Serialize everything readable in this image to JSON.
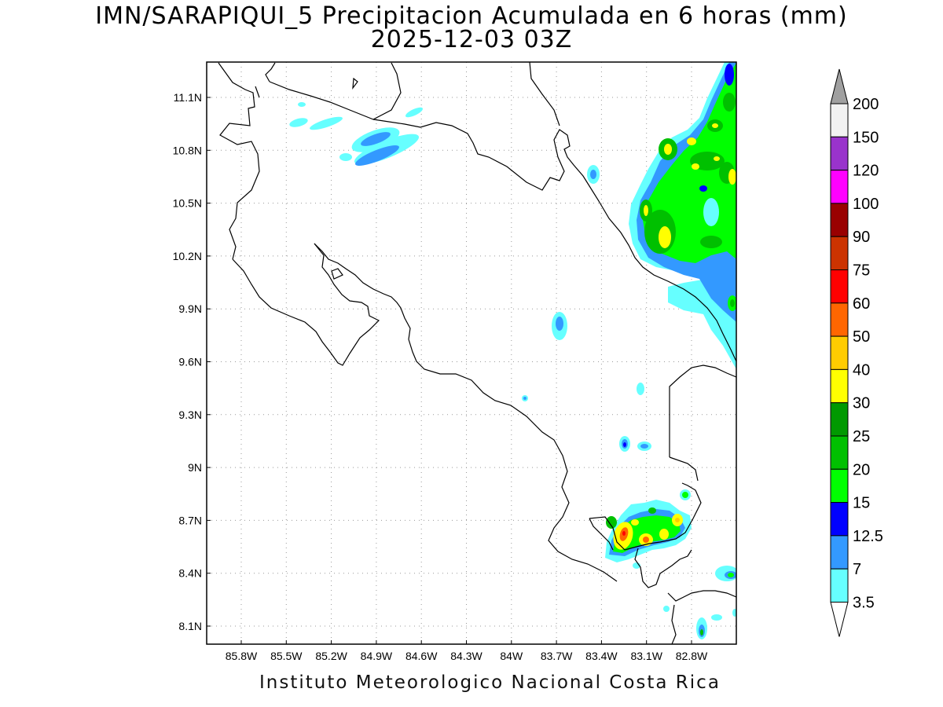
{
  "title": {
    "line1": "IMN/SARAPIQUI_5 Precipitacion Acumulada en 6 horas (mm)",
    "line2": "2025-12-03 03Z"
  },
  "footer": "Instituto Meteorologico Nacional Costa Rica",
  "map": {
    "lat_ticks": [
      "11.1N",
      "10.8N",
      "10.5N",
      "10.2N",
      "9.9N",
      "9.6N",
      "9.3N",
      "9N",
      "8.7N",
      "8.4N",
      "8.1N"
    ],
    "lon_ticks": [
      "85.8W",
      "85.5W",
      "85.2W",
      "84.9W",
      "84.6W",
      "84.3W",
      "84W",
      "83.7W",
      "83.4W",
      "83.1W",
      "82.8W"
    ]
  },
  "colorbar": {
    "labels": [
      "200",
      "150",
      "120",
      "100",
      "90",
      "75",
      "60",
      "50",
      "40",
      "30",
      "25",
      "20",
      "15",
      "12.5",
      "7",
      "3.5"
    ],
    "colors": [
      "#f2f2f2",
      "#9933cc",
      "#ff00ff",
      "#990000",
      "#cc3300",
      "#ff0000",
      "#ff6600",
      "#ffcc00",
      "#ffff00",
      "#009900",
      "#00c000",
      "#00ff00",
      "#0000ff",
      "#3399ff",
      "#66ffff"
    ],
    "over_color": "#a0a0a0",
    "under_color": "#ffffff"
  }
}
